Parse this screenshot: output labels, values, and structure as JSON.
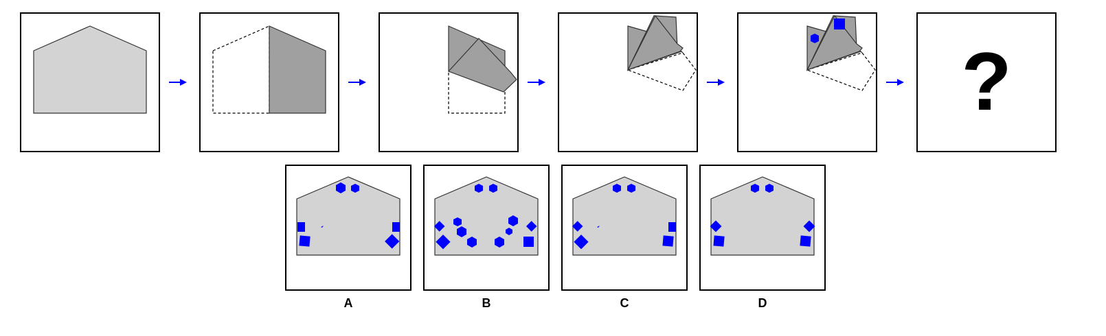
{
  "puzzle": {
    "question_mark": "?",
    "options": [
      {
        "label": "A"
      },
      {
        "label": "B"
      },
      {
        "label": "C"
      },
      {
        "label": "D"
      }
    ]
  },
  "colors": {
    "paper": "#d3d3d3",
    "folded": "#a0a0a0",
    "mark": "#0000ff",
    "arrow": "#0000ff"
  }
}
